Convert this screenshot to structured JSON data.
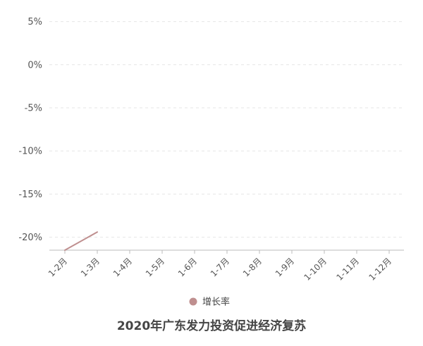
{
  "chart_data": {
    "type": "line",
    "title": "2020年广东发力投资促进经济复苏",
    "categories": [
      "1-2月",
      "1-3月",
      "1-4月",
      "1-5月",
      "1-6月",
      "1-7月",
      "1-8月",
      "1-9月",
      "1-10月",
      "1-11月",
      "1-12月"
    ],
    "series": [
      {
        "name": "增长率",
        "values": [
          -21.5,
          -19.4,
          null,
          null,
          null,
          null,
          null,
          null,
          null,
          null,
          null
        ],
        "color": "#bf8f8f"
      }
    ],
    "y_ticks": [
      "5%",
      "0%",
      "-5%",
      "-10%",
      "-15%",
      "-20%"
    ],
    "y_tick_values": [
      5,
      0,
      -5,
      -10,
      -15,
      -20
    ],
    "ylim": [
      -21.5,
      7.5
    ],
    "grid": true,
    "legend_position": "bottom-center"
  }
}
